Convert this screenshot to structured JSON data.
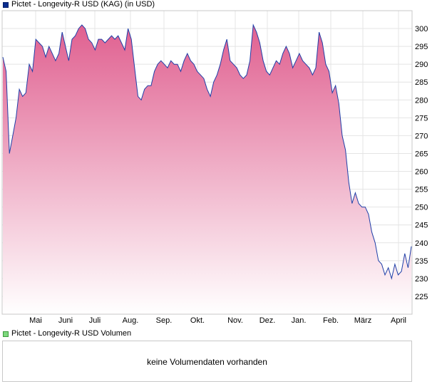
{
  "legend": {
    "price_label": "Pictet - Longevity-R USD (KAG) (in USD)",
    "volume_label": "Pictet - Longevity-R USD Volumen"
  },
  "volume": {
    "message": "keine Volumendaten vorhanden"
  },
  "colors": {
    "line": "#1f3fa8",
    "fill_top": "#e06090",
    "fill_bottom": "#ffffff",
    "grid": "#e4e4e4"
  },
  "chart_data": {
    "type": "area",
    "ylim": [
      220,
      305
    ],
    "yticks": [
      225,
      230,
      235,
      240,
      245,
      250,
      255,
      260,
      265,
      270,
      275,
      280,
      285,
      290,
      295,
      300
    ],
    "x_labels": [
      "Mai",
      "Juni",
      "Juli",
      "Aug.",
      "Sep.",
      "Okt.",
      "Nov.",
      "Dez.",
      "Jan.",
      "Feb.",
      "März",
      "April"
    ],
    "grid": true,
    "series": [
      {
        "values": [
          292,
          288,
          265,
          270,
          275,
          283,
          281,
          282,
          290,
          288,
          297,
          296,
          295,
          292,
          295,
          293,
          291,
          293,
          299,
          295,
          291,
          297,
          298,
          300,
          301,
          300,
          297,
          296,
          294,
          297,
          297,
          296,
          297,
          298,
          297,
          298,
          296,
          294,
          300,
          297,
          289,
          281,
          280,
          283,
          284,
          284,
          288,
          290,
          291,
          290,
          289,
          291,
          290,
          290,
          288,
          291,
          293,
          291,
          290,
          288,
          287,
          286,
          283,
          281,
          285,
          287,
          290,
          294,
          297,
          291,
          290,
          289,
          287,
          286,
          287,
          291,
          301,
          299,
          296,
          291,
          288,
          287,
          289,
          291,
          290,
          293,
          295,
          293,
          289,
          291,
          293,
          291,
          290,
          289,
          287,
          289,
          299,
          296,
          290,
          288,
          282,
          284,
          279,
          270,
          266,
          257,
          251,
          254,
          251,
          250,
          250,
          248,
          243,
          240,
          235,
          234,
          231,
          233,
          230,
          234,
          231,
          232,
          237,
          233,
          239
        ]
      }
    ]
  }
}
